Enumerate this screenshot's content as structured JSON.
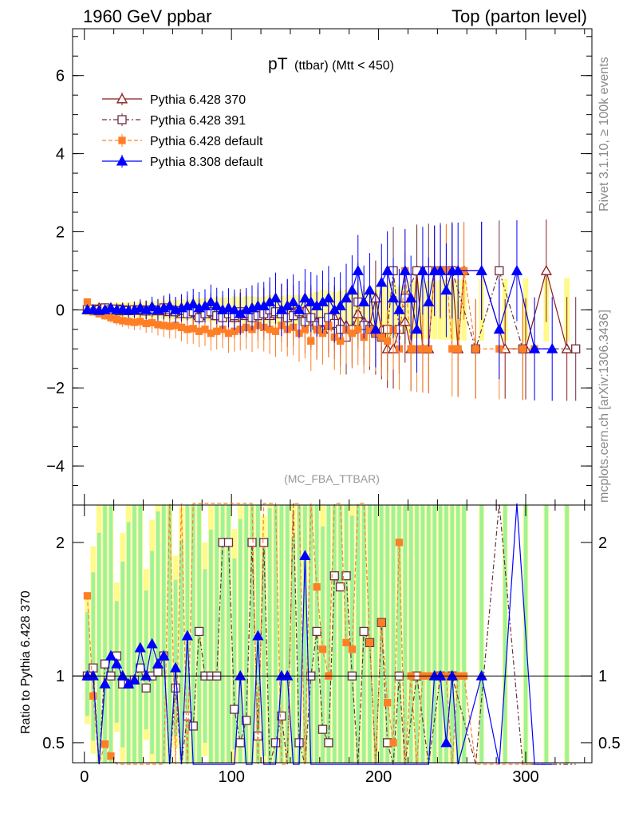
{
  "header": {
    "left": "1960 GeV ppbar",
    "right": "Top (parton level)"
  },
  "side_labels": {
    "rivet": "Rivet 3.1.10, ≥ 100k events",
    "mcplots": "mcplots.cern.ch [arXiv:1306.3436]"
  },
  "chart_data": [
    {
      "type": "line",
      "title": "pT",
      "title_sub": "(ttbar) (Mtt < 450)",
      "watermark": "(MC_FBA_TTBAR)",
      "xlim": [
        -8,
        345
      ],
      "ylim": [
        -5,
        7.2
      ],
      "yticks": [
        "−4",
        "−2",
        "0",
        "2",
        "4",
        "6"
      ],
      "ytick_values": [
        -4,
        -2,
        0,
        2,
        4,
        6
      ],
      "legend_position": "top-left",
      "series": [
        {
          "name": "Pythia 6.428 370",
          "color": "#8b1a1a",
          "marker": "triangle-open",
          "x": [
            2,
            6,
            10,
            14,
            18,
            22,
            26,
            30,
            34,
            38,
            42,
            46,
            50,
            54,
            58,
            62,
            66,
            70,
            74,
            78,
            82,
            86,
            90,
            94,
            98,
            102,
            106,
            110,
            114,
            118,
            122,
            126,
            130,
            134,
            138,
            142,
            146,
            150,
            154,
            158,
            162,
            166,
            170,
            174,
            178,
            182,
            186,
            190,
            194,
            198,
            202,
            206,
            210,
            214,
            218,
            222,
            226,
            230,
            234,
            238,
            242,
            246,
            250,
            254,
            258,
            270,
            286,
            300,
            314,
            328
          ],
          "y": [
            0.0,
            0.0,
            0.05,
            0.02,
            0.0,
            -0.03,
            0.02,
            0.0,
            0.01,
            -0.02,
            0.0,
            0.0,
            -0.03,
            0.0,
            -0.05,
            -0.02,
            -0.1,
            0.0,
            -0.08,
            -0.15,
            -0.1,
            -0.05,
            -0.15,
            -0.1,
            -0.05,
            -0.2,
            -0.1,
            -0.15,
            -0.1,
            0.0,
            -0.05,
            -0.15,
            -0.1,
            0.0,
            0.1,
            -0.05,
            -0.1,
            0.0,
            -0.2,
            -0.3,
            -0.5,
            -0.4,
            -0.2,
            -0.3,
            -0.4,
            -0.5,
            -0.1,
            -0.3,
            -0.4,
            0.3,
            -0.5,
            -1.0,
            -1.0,
            -0.5,
            -0.3,
            -1.0,
            1.0,
            -1.0,
            -1.0,
            1.0,
            1.0,
            1.0,
            1.0,
            -1.0,
            1.0,
            1.0,
            -1.0,
            -1.0,
            1.0,
            -1.0
          ]
        },
        {
          "name": "Pythia 6.428 391",
          "color": "#6b2e3e",
          "marker": "square-open",
          "x": [
            2,
            6,
            10,
            14,
            18,
            22,
            26,
            30,
            34,
            38,
            42,
            46,
            50,
            54,
            58,
            62,
            66,
            70,
            74,
            78,
            82,
            86,
            90,
            94,
            98,
            102,
            106,
            110,
            114,
            118,
            122,
            126,
            130,
            134,
            138,
            142,
            146,
            150,
            154,
            158,
            162,
            166,
            170,
            174,
            178,
            182,
            186,
            190,
            194,
            198,
            202,
            206,
            210,
            214,
            218,
            226,
            234,
            242,
            250,
            266,
            282,
            298,
            334
          ],
          "y": [
            0.0,
            0.02,
            0.0,
            0.05,
            0.0,
            0.02,
            0.0,
            -0.02,
            0.0,
            0.0,
            -0.03,
            0.0,
            -0.02,
            0.05,
            0.0,
            -0.05,
            -0.02,
            -0.1,
            -0.05,
            -0.2,
            -0.1,
            -0.05,
            -0.15,
            -0.2,
            -0.1,
            -0.15,
            -0.05,
            -0.1,
            -0.2,
            -0.15,
            -0.1,
            0.0,
            -0.05,
            -0.1,
            -0.2,
            -0.15,
            -0.05,
            -0.3,
            -0.2,
            -0.4,
            -0.3,
            -0.2,
            -0.35,
            -0.5,
            -0.7,
            -0.5,
            0.2,
            -0.4,
            -0.5,
            -0.6,
            -0.7,
            -0.5,
            1.0,
            -0.5,
            0.3,
            1.0,
            1.0,
            1.0,
            1.0,
            -1.0,
            1.0,
            -1.0,
            -1.0
          ]
        },
        {
          "name": "Pythia 6.428 default",
          "color": "#ff7f27",
          "marker": "square-filled",
          "x": [
            2,
            6,
            10,
            14,
            18,
            22,
            26,
            30,
            34,
            38,
            42,
            46,
            50,
            54,
            58,
            62,
            66,
            70,
            74,
            78,
            82,
            86,
            90,
            94,
            98,
            102,
            106,
            110,
            114,
            118,
            122,
            126,
            130,
            134,
            138,
            142,
            146,
            150,
            154,
            158,
            162,
            166,
            170,
            174,
            178,
            182,
            186,
            190,
            194,
            198,
            202,
            206,
            210,
            214,
            218,
            222,
            226,
            230,
            234,
            238,
            242,
            246,
            250,
            254,
            258,
            266,
            282,
            298,
            306
          ],
          "y": [
            0.2,
            -0.05,
            -0.1,
            -0.15,
            -0.2,
            -0.25,
            -0.28,
            -0.3,
            -0.32,
            -0.3,
            -0.35,
            -0.33,
            -0.38,
            -0.4,
            -0.42,
            -0.4,
            -0.45,
            -0.5,
            -0.48,
            -0.55,
            -0.5,
            -0.6,
            -0.55,
            -0.5,
            -0.6,
            -0.55,
            -0.5,
            -0.45,
            -0.5,
            -0.4,
            -0.45,
            -0.5,
            -0.55,
            -0.4,
            -0.5,
            -0.45,
            -0.6,
            -0.5,
            -0.8,
            -0.5,
            -0.6,
            -0.4,
            -0.7,
            -0.8,
            -0.5,
            -0.6,
            -0.5,
            -0.7,
            -0.5,
            -0.6,
            -0.7,
            -0.8,
            -0.5,
            -1.0,
            1.0,
            -1.0,
            -1.0,
            -1.0,
            -1.0,
            1.0,
            1.0,
            1.0,
            -1.0,
            -1.0,
            1.0,
            -1.0,
            -1.0,
            -1.0,
            -1.0
          ]
        },
        {
          "name": "Pythia 8.308 default",
          "color": "#0000ff",
          "marker": "triangle-filled",
          "x": [
            2,
            6,
            10,
            14,
            18,
            22,
            26,
            30,
            34,
            38,
            42,
            46,
            50,
            54,
            58,
            62,
            66,
            70,
            74,
            78,
            82,
            86,
            90,
            94,
            98,
            102,
            106,
            110,
            114,
            118,
            122,
            126,
            130,
            134,
            138,
            142,
            146,
            150,
            154,
            158,
            162,
            166,
            170,
            174,
            178,
            182,
            186,
            190,
            194,
            198,
            202,
            206,
            210,
            214,
            218,
            222,
            226,
            230,
            234,
            238,
            242,
            246,
            250,
            254,
            270,
            282,
            294,
            306,
            318
          ],
          "y": [
            0.0,
            0.0,
            -0.02,
            0.0,
            0.05,
            0.0,
            0.02,
            -0.02,
            0.0,
            0.05,
            0.0,
            0.08,
            0.0,
            0.05,
            0.1,
            0.0,
            0.05,
            0.1,
            0.15,
            0.05,
            0.1,
            0.2,
            0.1,
            0.0,
            0.05,
            0.0,
            -0.1,
            0.0,
            0.05,
            0.1,
            0.1,
            0.2,
            0.3,
            0.0,
            0.1,
            0.2,
            0.0,
            0.3,
            0.2,
            0.1,
            0.2,
            0.3,
            0.0,
            0.1,
            0.3,
            0.5,
            1.0,
            0.2,
            0.5,
            -0.5,
            0.7,
            1.0,
            0.3,
            0.0,
            1.0,
            0.3,
            -0.5,
            1.0,
            0.2,
            1.0,
            1.0,
            0.5,
            1.0,
            1.0,
            1.0,
            -0.5,
            1.0,
            -1.0,
            -1.0
          ]
        }
      ]
    },
    {
      "type": "line",
      "ylabel": "Ratio to Pythia 6.428 370",
      "xlim": [
        -8,
        345
      ],
      "ylim": [
        0.35,
        2.28
      ],
      "xticks": [
        "0",
        "100",
        "200",
        "300"
      ],
      "xtick_values": [
        0,
        100,
        200,
        300
      ],
      "yticks": [
        "0.5",
        "1",
        "2"
      ],
      "ytick_values": [
        0.5,
        1,
        2
      ],
      "grid": false
    }
  ]
}
